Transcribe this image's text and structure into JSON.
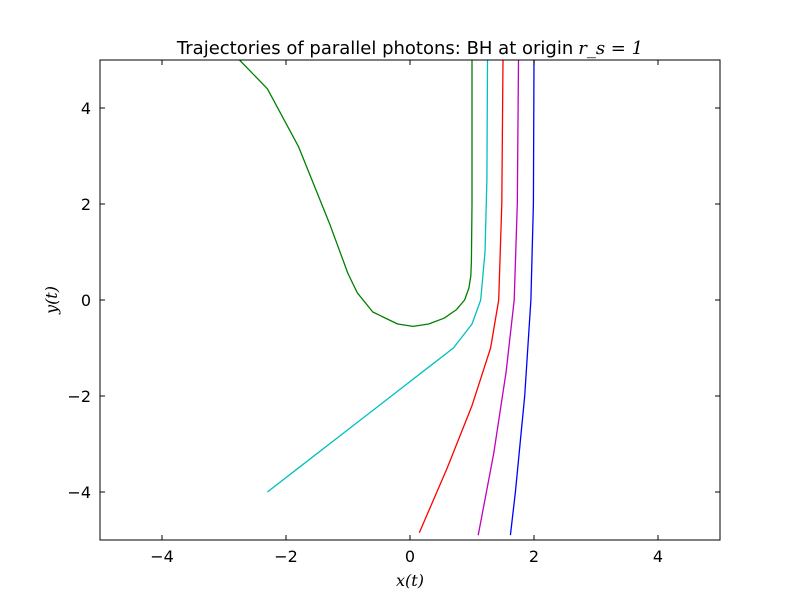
{
  "chart_data": {
    "type": "line",
    "title": "Trajectories of parallel photons: BH at origin",
    "title_math": "r_s = 1",
    "xlabel": "x(t)",
    "ylabel": "y(t)",
    "xlim": [
      -5,
      5
    ],
    "ylim": [
      -5,
      5
    ],
    "xticks": [
      -4,
      -2,
      0,
      2,
      4
    ],
    "yticks": [
      -4,
      -2,
      0,
      2,
      4
    ],
    "xtick_labels": [
      "−4",
      "−2",
      "0",
      "2",
      "4"
    ],
    "ytick_labels": [
      "−4",
      "−2",
      "0",
      "2",
      "4"
    ],
    "grid": false,
    "series": [
      {
        "color": "#008000",
        "x": [
          1.0,
          1.0,
          0.99,
          0.98,
          0.95,
          0.88,
          0.75,
          0.55,
          0.3,
          0.05,
          -0.2,
          -0.6,
          -0.85,
          -1.0,
          -1.3,
          -1.8,
          -2.3,
          -2.75
        ],
        "y": [
          5.0,
          2.0,
          0.8,
          0.5,
          0.25,
          0.0,
          -0.2,
          -0.38,
          -0.5,
          -0.55,
          -0.5,
          -0.25,
          0.15,
          0.55,
          1.6,
          3.2,
          4.4,
          5.0
        ]
      },
      {
        "color": "#00bfbf",
        "x": [
          1.25,
          1.24,
          1.21,
          1.14,
          1.0,
          0.7,
          0.3,
          -0.3,
          -1.0,
          -1.7,
          -2.3
        ],
        "y": [
          5.0,
          2.5,
          1.0,
          0.0,
          -0.5,
          -1.0,
          -1.4,
          -2.0,
          -2.7,
          -3.4,
          -4.0
        ]
      },
      {
        "color": "#ff0000",
        "x": [
          1.5,
          1.48,
          1.43,
          1.3,
          1.0,
          0.6,
          0.15
        ],
        "y": [
          5.0,
          2.0,
          0.0,
          -1.0,
          -2.2,
          -3.5,
          -4.85
        ]
      },
      {
        "color": "#bf00bf",
        "x": [
          1.75,
          1.73,
          1.68,
          1.55,
          1.35,
          1.1
        ],
        "y": [
          5.0,
          2.0,
          0.0,
          -1.5,
          -3.2,
          -4.9
        ]
      },
      {
        "color": "#0000ff",
        "x": [
          2.0,
          1.99,
          1.95,
          1.85,
          1.7,
          1.62
        ],
        "y": [
          5.0,
          2.0,
          0.0,
          -2.0,
          -4.0,
          -4.9
        ]
      }
    ]
  }
}
